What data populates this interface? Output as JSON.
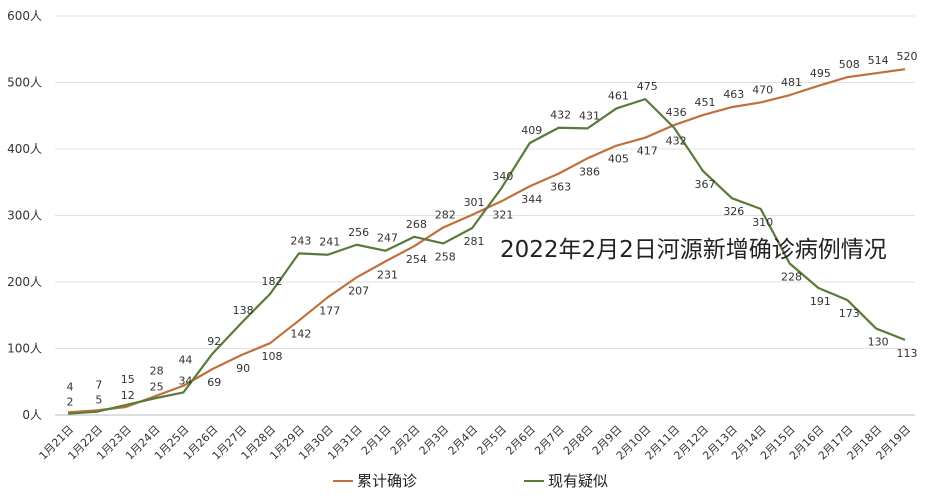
{
  "chart_data": {
    "type": "line",
    "categories": [
      "1月21日",
      "1月22日",
      "1月23日",
      "1月24日",
      "1月25日",
      "1月26日",
      "1月27日",
      "1月28日",
      "1月29日",
      "1月30日",
      "1月31日",
      "2月1日",
      "2月2日",
      "2月3日",
      "2月4日",
      "2月5日",
      "2月6日",
      "2月7日",
      "2月8日",
      "2月9日",
      "2月10日",
      "2月11日",
      "2月12日",
      "2月13日",
      "2月14日",
      "2月15日",
      "2月16日",
      "2月17日",
      "2月18日",
      "2月19日"
    ],
    "y_ticks": [
      "0人",
      "100人",
      "200人",
      "300人",
      "400人",
      "500人",
      "600人"
    ],
    "ylim": [
      0,
      600
    ],
    "grid": true,
    "legend_position": "bottom",
    "series": [
      {
        "name": "累计确诊",
        "color": "#c0703a",
        "values": [
          4,
          7,
          12,
          28,
          44,
          69,
          90,
          108,
          142,
          177,
          207,
          231,
          254,
          282,
          301,
          321,
          344,
          363,
          386,
          405,
          417,
          436,
          451,
          463,
          470,
          481,
          495,
          508,
          514,
          520
        ]
      },
      {
        "name": "现有疑似",
        "color": "#5a7a3a",
        "values": [
          2,
          5,
          15,
          25,
          34,
          92,
          138,
          182,
          243,
          241,
          256,
          247,
          268,
          258,
          281,
          340,
          409,
          432,
          431,
          461,
          475,
          432,
          367,
          326,
          310,
          228,
          191,
          173,
          130,
          113
        ]
      }
    ]
  },
  "watermark": "2022年2月2日河源新增确诊病例情况"
}
